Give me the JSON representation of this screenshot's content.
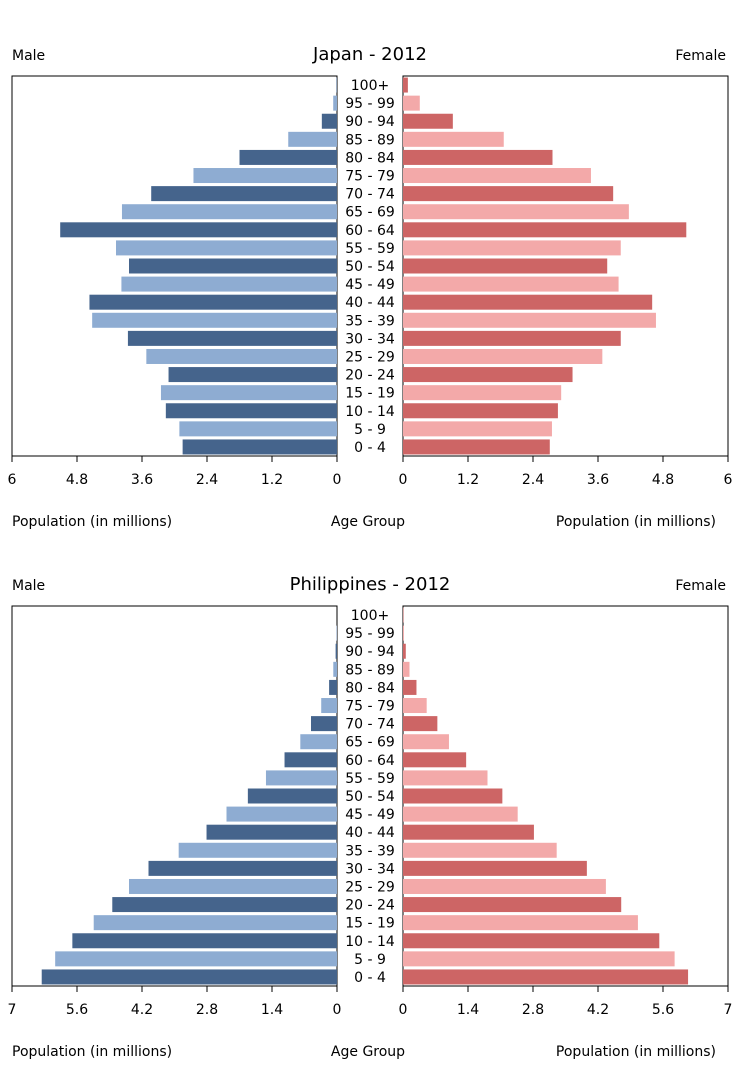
{
  "age_groups": [
    "0 - 4",
    "5 - 9",
    "10 - 14",
    "15 - 19",
    "20 - 24",
    "25 - 29",
    "30 - 34",
    "35 - 39",
    "40 - 44",
    "45 - 49",
    "50 - 54",
    "55 - 59",
    "60 - 64",
    "65 - 69",
    "70 - 74",
    "75 - 79",
    "80 - 84",
    "85 - 89",
    "90 - 94",
    "95 - 99",
    "100+"
  ],
  "colors": {
    "male_dark": "#45648c",
    "male_light": "#8eacd2",
    "female_dark": "#cd6565",
    "female_light": "#f3a9a9"
  },
  "chart_data": [
    {
      "type": "bar",
      "title": "Japan - 2012",
      "left_label": "Male",
      "right_label": "Female",
      "xlabel_left": "Population (in millions)",
      "xlabel_center": "Age Group",
      "xlabel_right": "Population (in millions)",
      "xlim": [
        0,
        6
      ],
      "ticks": [
        "0",
        "1.2",
        "2.4",
        "3.6",
        "4.8",
        "6"
      ],
      "tick_values": [
        0,
        1.2,
        2.4,
        3.6,
        4.8,
        6
      ],
      "series": [
        {
          "name": "Male",
          "values": [
            2.85,
            2.91,
            3.16,
            3.25,
            3.11,
            3.52,
            3.86,
            4.52,
            4.57,
            3.98,
            3.84,
            4.08,
            5.11,
            3.97,
            3.43,
            2.65,
            1.8,
            0.9,
            0.28,
            0.07,
            0.01
          ]
        },
        {
          "name": "Female",
          "values": [
            2.71,
            2.75,
            2.86,
            2.92,
            3.13,
            3.68,
            4.02,
            4.67,
            4.6,
            3.98,
            3.77,
            4.02,
            5.23,
            4.17,
            3.88,
            3.47,
            2.76,
            1.86,
            0.92,
            0.31,
            0.09
          ]
        }
      ]
    },
    {
      "type": "bar",
      "title": "Philippines - 2012",
      "left_label": "Male",
      "right_label": "Female",
      "xlabel_left": "Population (in millions)",
      "xlabel_center": "Age Group",
      "xlabel_right": "Population (in millions)",
      "xlim": [
        0,
        7
      ],
      "ticks": [
        "0",
        "1.4",
        "2.8",
        "4.2",
        "5.6",
        "7"
      ],
      "tick_values": [
        0,
        1.4,
        2.8,
        4.2,
        5.6,
        7
      ],
      "series": [
        {
          "name": "Male",
          "values": [
            6.36,
            6.07,
            5.7,
            5.24,
            4.84,
            4.48,
            4.06,
            3.41,
            2.81,
            2.38,
            1.92,
            1.53,
            1.13,
            0.79,
            0.56,
            0.34,
            0.17,
            0.08,
            0.03,
            0.01,
            0.0
          ]
        },
        {
          "name": "Female",
          "values": [
            6.14,
            5.85,
            5.52,
            5.06,
            4.7,
            4.37,
            3.96,
            3.31,
            2.82,
            2.47,
            2.14,
            1.82,
            1.36,
            0.99,
            0.74,
            0.51,
            0.29,
            0.14,
            0.06,
            0.02,
            0.01
          ]
        }
      ]
    }
  ]
}
